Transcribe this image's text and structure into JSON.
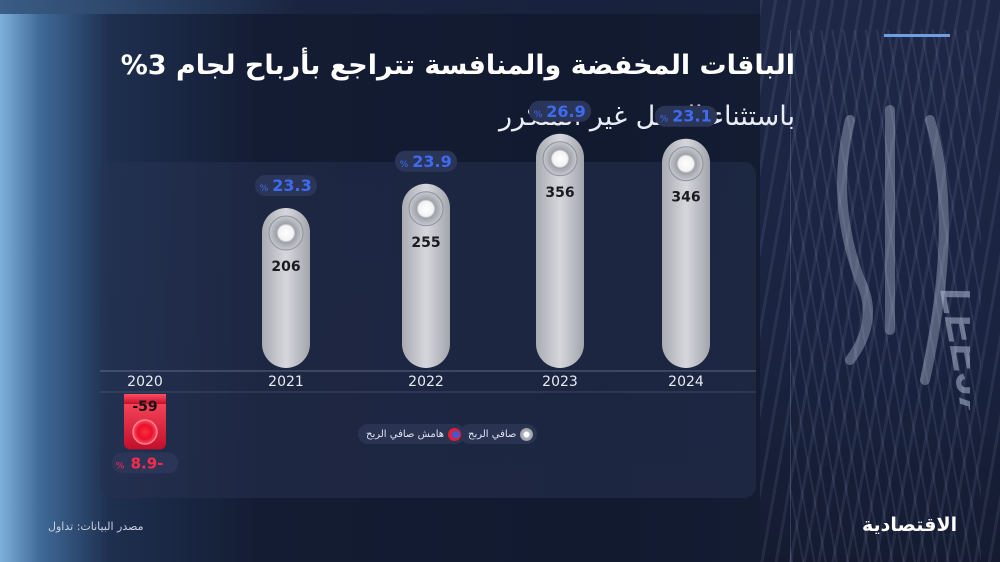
{
  "title": "الباقات المخفضة والمنافسة تتراجع بأرباح لجام 3%",
  "subtitle": "باستثناء الدخل غير المتكرر",
  "source": "مصدر البيانات: تداول",
  "brand": "الاقتصادية",
  "logo_text": "لجام LEEJAM",
  "colors": {
    "positive_bar": "#c9cacf",
    "negative_bar": "#e0183a",
    "margin_text": "#3e6bf0",
    "negative_margin_text": "#ff2a4a"
  },
  "chart_data": {
    "type": "bar",
    "categories": [
      "2020",
      "2021",
      "2022",
      "2023",
      "2024"
    ],
    "series": [
      {
        "name": "صافي الربح",
        "values": [
          -59,
          206,
          255,
          356,
          346
        ]
      },
      {
        "name": "هامش صافي الربح",
        "values": [
          -8.9,
          23.3,
          23.9,
          26.9,
          23.1
        ]
      }
    ],
    "value_labels": [
      "-59",
      "206",
      "255",
      "356",
      "346"
    ],
    "margin_labels": [
      "-8.9",
      "23.3",
      "23.9",
      "26.9",
      "23.1"
    ],
    "percent_sign": "%",
    "legend": {
      "net": "صافي الربح",
      "margin": "هامش صافي الربح",
      "placement": "bottom-center"
    }
  }
}
